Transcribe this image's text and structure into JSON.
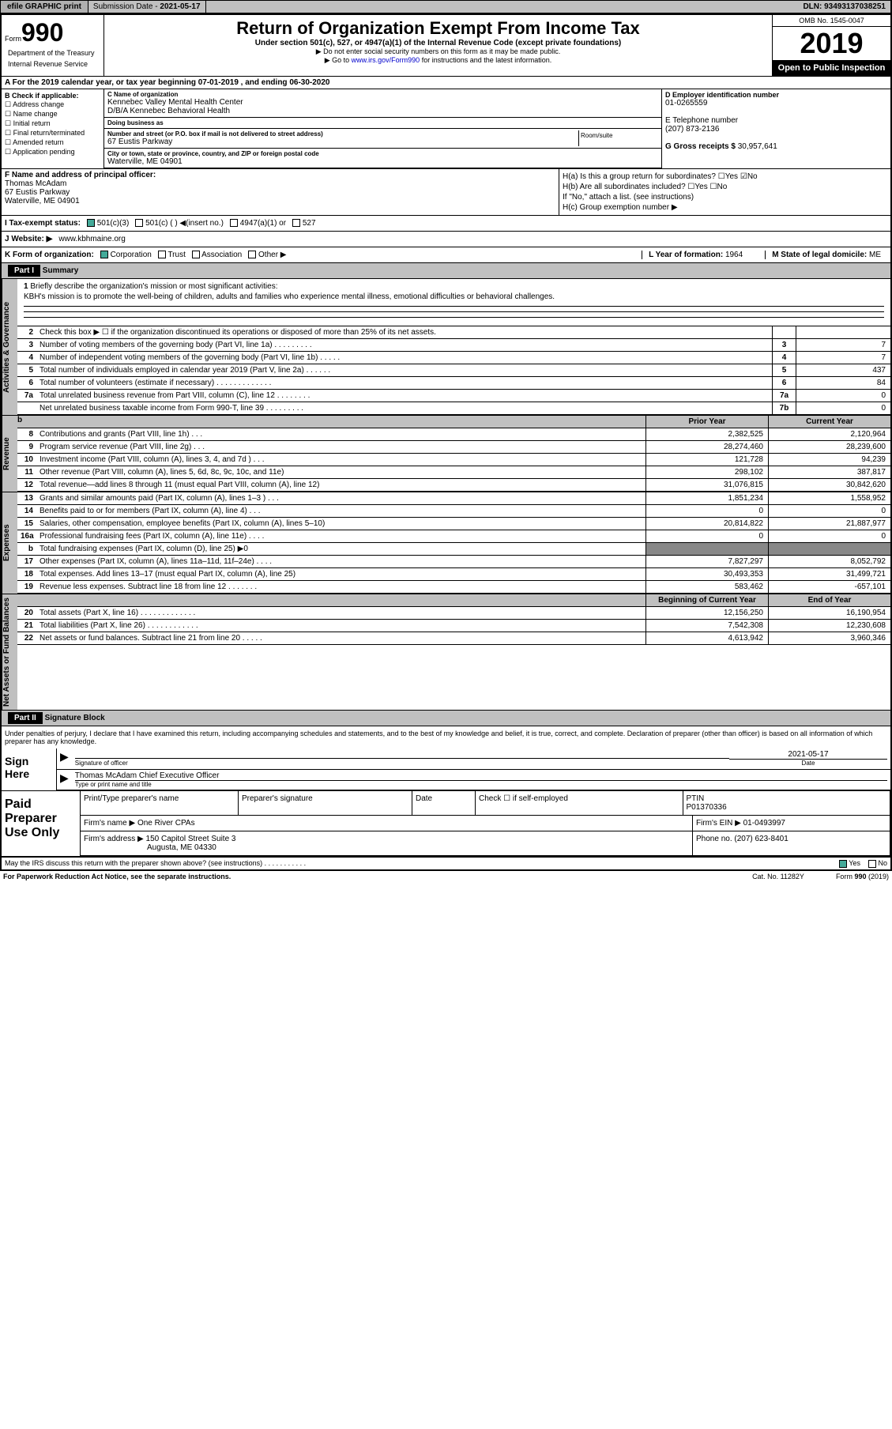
{
  "topbar": {
    "efile": "efile GRAPHIC print",
    "subdate_label": "Submission Date - ",
    "subdate": "2021-05-17",
    "dln_label": "DLN: ",
    "dln": "93493137038251"
  },
  "header": {
    "form_label": "Form",
    "form_no": "990",
    "dept1": "Department of the Treasury",
    "dept2": "Internal Revenue Service",
    "title": "Return of Organization Exempt From Income Tax",
    "sub1": "Under section 501(c), 527, or 4947(a)(1) of the Internal Revenue Code (except private foundations)",
    "sub2": "▶ Do not enter social security numbers on this form as it may be made public.",
    "sub3a": "▶ Go to ",
    "sub3_link": "www.irs.gov/Form990",
    "sub3b": " for instructions and the latest information.",
    "omb": "OMB No. 1545-0047",
    "year": "2019",
    "open": "Open to Public Inspection"
  },
  "row_a": "A For the 2019 calendar year, or tax year beginning 07-01-2019    , and ending 06-30-2020",
  "col_b": {
    "hdr": "B Check if applicable:",
    "items": [
      "Address change",
      "Name change",
      "Initial return",
      "Final return/terminated",
      "Amended return",
      "Application pending"
    ]
  },
  "col_c": {
    "name_lbl": "C Name of organization",
    "name1": "Kennebec Valley Mental Health Center",
    "name2": "D/B/A Kennebec Behavioral Health",
    "dba_lbl": "Doing business as",
    "addr_lbl": "Number and street (or P.O. box if mail is not delivered to street address)",
    "addr": "67 Eustis Parkway",
    "room_lbl": "Room/suite",
    "city_lbl": "City or town, state or province, country, and ZIP or foreign postal code",
    "city": "Waterville, ME  04901"
  },
  "col_d": {
    "ein_lbl": "D Employer identification number",
    "ein": "01-0265559",
    "tel_lbl": "E Telephone number",
    "tel": "(207) 873-2136",
    "gross_lbl": "G Gross receipts $ ",
    "gross": "30,957,641"
  },
  "col_f": {
    "lbl": "F  Name and address of principal officer:",
    "name": "Thomas McAdam",
    "addr1": "67 Eustis Parkway",
    "addr2": "Waterville, ME  04901"
  },
  "col_h": {
    "ha": "H(a)  Is this a group return for subordinates?",
    "hb": "H(b)  Are all subordinates included?",
    "hb2": "If \"No,\" attach a list. (see instructions)",
    "hc": "H(c)  Group exemption number ▶",
    "yes": "Yes",
    "no": "No"
  },
  "status": {
    "i": "I  Tax-exempt status:",
    "opts": [
      "501(c)(3)",
      "501(c) (  ) ◀(insert no.)",
      "4947(a)(1) or",
      "527"
    ]
  },
  "website": {
    "lbl": "J  Website: ▶  ",
    "val": "www.kbhmaine.org"
  },
  "row_k": {
    "lbl": "K Form of organization:",
    "opts": [
      "Corporation",
      "Trust",
      "Association",
      "Other ▶"
    ],
    "l_lbl": "L Year of formation: ",
    "l_val": "1964",
    "m_lbl": "M State of legal domicile: ",
    "m_val": "ME"
  },
  "part1": {
    "hdr": "Part I",
    "title": "Summary"
  },
  "mission": {
    "ln": "1",
    "lbl": "Briefly describe the organization's mission or most significant activities:",
    "text": "KBH's mission is to promote the well-being of children, adults and families who experience mental illness, emotional difficulties or behavioral challenges."
  },
  "gov_rows": [
    {
      "ln": "2",
      "desc": "Check this box ▶ ☐  if the organization discontinued its operations or disposed of more than 25% of its net assets.",
      "box": "",
      "val": ""
    },
    {
      "ln": "3",
      "desc": "Number of voting members of the governing body (Part VI, line 1a)  .    .    .    .    .    .    .    .    .",
      "box": "3",
      "val": "7"
    },
    {
      "ln": "4",
      "desc": "Number of independent voting members of the governing body (Part VI, line 1b)  .    .    .    .    .",
      "box": "4",
      "val": "7"
    },
    {
      "ln": "5",
      "desc": "Total number of individuals employed in calendar year 2019 (Part V, line 2a)  .    .    .    .    .    .",
      "box": "5",
      "val": "437"
    },
    {
      "ln": "6",
      "desc": "Total number of volunteers (estimate if necessary)    .    .    .    .    .    .    .    .    .    .    .    .    .",
      "box": "6",
      "val": "84"
    },
    {
      "ln": "7a",
      "desc": "Total unrelated business revenue from Part VIII, column (C), line 12  .    .    .    .    .    .    .    .",
      "box": "7a",
      "val": "0"
    },
    {
      "ln": "",
      "desc": "Net unrelated business taxable income from Form 990-T, line 39   .    .    .    .    .    .    .    .    .",
      "box": "7b",
      "val": "0"
    }
  ],
  "fin_hdr": {
    "b": "b",
    "py": "Prior Year",
    "cy": "Current Year"
  },
  "rev_rows": [
    {
      "ln": "8",
      "desc": "Contributions and grants (Part VIII, line 1h)   .    .    .",
      "c1": "2,382,525",
      "c2": "2,120,964"
    },
    {
      "ln": "9",
      "desc": "Program service revenue (Part VIII, line 2g)   .    .    .",
      "c1": "28,274,460",
      "c2": "28,239,600"
    },
    {
      "ln": "10",
      "desc": "Investment income (Part VIII, column (A), lines 3, 4, and 7d )   .    .    .",
      "c1": "121,728",
      "c2": "94,239"
    },
    {
      "ln": "11",
      "desc": "Other revenue (Part VIII, column (A), lines 5, 6d, 8c, 9c, 10c, and 11e)",
      "c1": "298,102",
      "c2": "387,817"
    },
    {
      "ln": "12",
      "desc": "Total revenue—add lines 8 through 11 (must equal Part VIII, column (A), line 12)",
      "c1": "31,076,815",
      "c2": "30,842,620"
    }
  ],
  "exp_rows": [
    {
      "ln": "13",
      "desc": "Grants and similar amounts paid (Part IX, column (A), lines 1–3 )  .    .    .",
      "c1": "1,851,234",
      "c2": "1,558,952"
    },
    {
      "ln": "14",
      "desc": "Benefits paid to or for members (Part IX, column (A), line 4)  .    .    .",
      "c1": "0",
      "c2": "0"
    },
    {
      "ln": "15",
      "desc": "Salaries, other compensation, employee benefits (Part IX, column (A), lines 5–10)",
      "c1": "20,814,822",
      "c2": "21,887,977"
    },
    {
      "ln": "16a",
      "desc": "Professional fundraising fees (Part IX, column (A), line 11e)  .    .    .    .",
      "c1": "0",
      "c2": "0"
    },
    {
      "ln": "b",
      "desc": "Total fundraising expenses (Part IX, column (D), line 25) ▶0",
      "c1": "gray",
      "c2": "gray"
    },
    {
      "ln": "17",
      "desc": "Other expenses (Part IX, column (A), lines 11a–11d, 11f–24e)   .    .    .    .",
      "c1": "7,827,297",
      "c2": "8,052,792"
    },
    {
      "ln": "18",
      "desc": "Total expenses. Add lines 13–17 (must equal Part IX, column (A), line 25)",
      "c1": "30,493,353",
      "c2": "31,499,721"
    },
    {
      "ln": "19",
      "desc": "Revenue less expenses. Subtract line 18 from line 12  .    .    .    .    .    .    .",
      "c1": "583,462",
      "c2": "-657,101"
    }
  ],
  "net_hdr": {
    "py": "Beginning of Current Year",
    "cy": "End of Year"
  },
  "net_rows": [
    {
      "ln": "20",
      "desc": "Total assets (Part X, line 16)  .    .    .    .    .    .    .    .    .    .    .    .    .",
      "c1": "12,156,250",
      "c2": "16,190,954"
    },
    {
      "ln": "21",
      "desc": "Total liabilities (Part X, line 26)  .    .    .    .    .    .    .    .    .    .    .    .",
      "c1": "7,542,308",
      "c2": "12,230,608"
    },
    {
      "ln": "22",
      "desc": "Net assets or fund balances. Subtract line 21 from line 20  .    .    .    .    .",
      "c1": "4,613,942",
      "c2": "3,960,346"
    }
  ],
  "side_labels": {
    "gov": "Activities & Governance",
    "rev": "Revenue",
    "exp": "Expenses",
    "net": "Net Assets or Fund Balances"
  },
  "part2": {
    "hdr": "Part II",
    "title": "Signature Block"
  },
  "sig": {
    "decl": "Under penalties of perjury, I declare that I have examined this return, including accompanying schedules and statements, and to the best of my knowledge and belief, it is true, correct, and complete. Declaration of preparer (other than officer) is based on all information of which preparer has any knowledge.",
    "left": "Sign Here",
    "sig_lbl": "Signature of officer",
    "date": "2021-05-17",
    "date_lbl": "Date",
    "name": "Thomas McAdam  Chief Executive Officer",
    "name_lbl": "Type or print name and title"
  },
  "paid": {
    "left": "Paid Preparer Use Only",
    "r1": {
      "p1": "Print/Type preparer's name",
      "p2": "Preparer's signature",
      "p3": "Date",
      "p4a": "Check ☐ if self-employed",
      "p4b": "PTIN",
      "p4c": "P01370336"
    },
    "r2": {
      "lbl": "Firm's name    ▶ ",
      "val": "One River CPAs",
      "ein_lbl": "Firm's EIN ▶ ",
      "ein": "01-0493997"
    },
    "r3": {
      "lbl": "Firm's address ▶ ",
      "val1": "150 Capitol Street Suite 3",
      "val2": "Augusta, ME  04330",
      "ph_lbl": "Phone no. ",
      "ph": "(207) 623-8401"
    }
  },
  "footer": {
    "discuss": "May the IRS discuss this return with the preparer shown above? (see instructions)    .    .    .    .    .    .    .    .    .    .    .",
    "yes": "Yes",
    "no": "No",
    "pra": "For Paperwork Reduction Act Notice, see the separate instructions.",
    "cat": "Cat. No. 11282Y",
    "form": "Form 990 (2019)"
  }
}
